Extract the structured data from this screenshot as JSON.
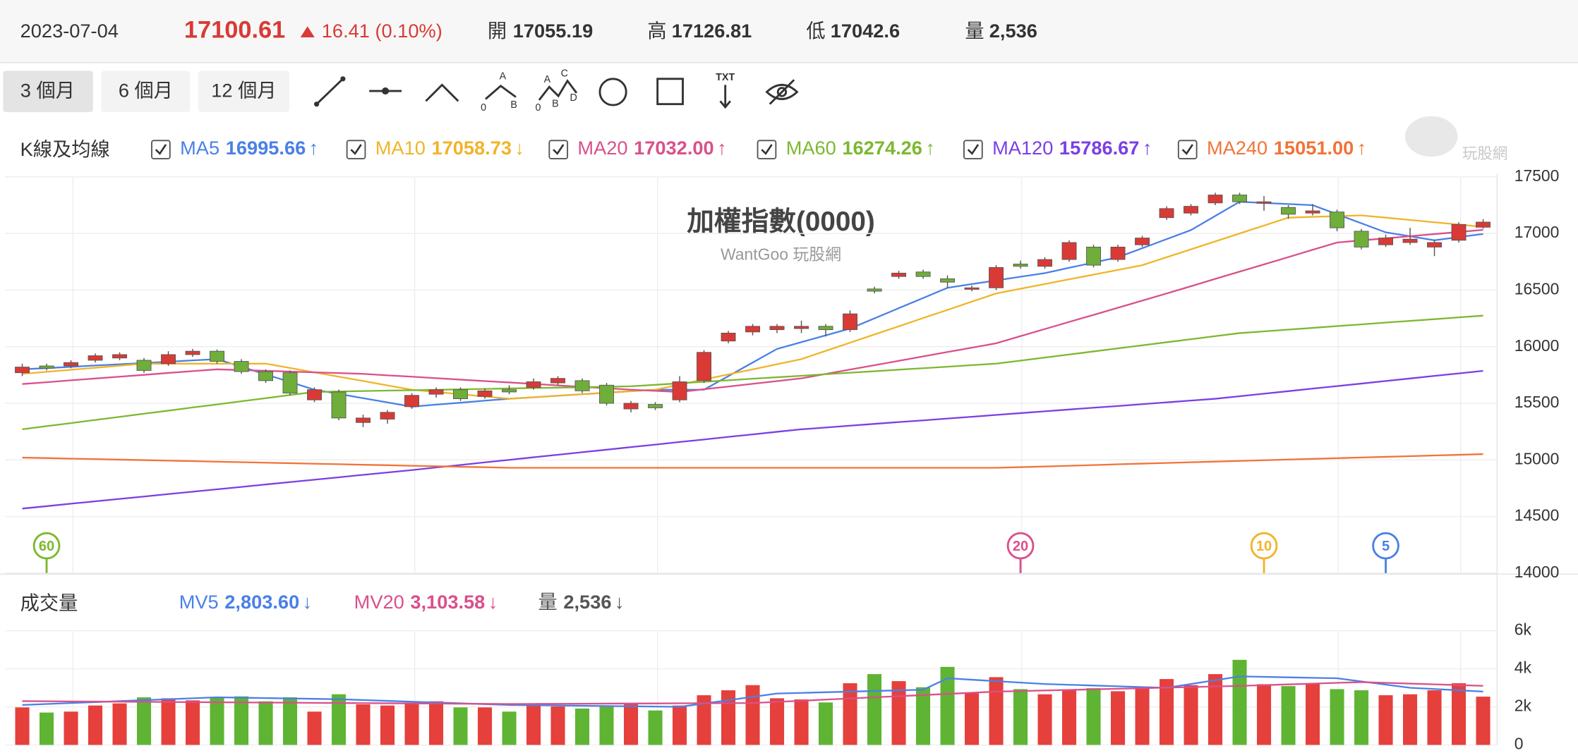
{
  "header": {
    "date": "2023-07-04",
    "price": "17100.61",
    "change": "16.41 (0.10%)",
    "open_label": "開",
    "open": "17055.19",
    "high_label": "高",
    "high": "17126.81",
    "low_label": "低",
    "low": "17042.6",
    "volume_label": "量",
    "volume": "2,536"
  },
  "toolbar": {
    "periods": [
      "3 個月",
      "6 個月",
      "12 個月"
    ],
    "abc_labels": [
      "A",
      "0",
      "B"
    ],
    "abcd_labels": [
      "A",
      "C",
      "0",
      "B",
      "D"
    ],
    "text_tool": "TXT"
  },
  "legend_title": "K線及均線",
  "watermark": "玩股網",
  "chart_data": [
    {
      "type": "candlestick",
      "title": "加權指數(0000)",
      "subtitle": "WantGoo 玩股網",
      "categories": [
        null,
        null,
        null,
        null,
        null,
        null,
        null,
        null,
        null,
        null,
        null,
        null,
        null,
        null,
        null,
        null,
        null,
        null,
        null,
        null,
        null,
        null,
        null,
        null,
        null,
        null,
        null,
        null,
        null,
        null,
        null,
        null,
        null,
        null,
        null,
        null,
        null,
        null,
        null,
        null,
        null,
        null,
        null,
        null,
        null,
        null,
        null,
        null,
        null,
        null,
        null,
        null,
        null,
        null,
        null,
        null,
        null,
        null,
        null,
        null,
        null
      ],
      "open": [
        15770,
        15830,
        15830,
        15880,
        15900,
        15880,
        15850,
        15930,
        15960,
        15870,
        15780,
        15770,
        15530,
        15600,
        15330,
        15360,
        15470,
        15580,
        15620,
        15560,
        15620,
        15640,
        15680,
        15700,
        15660,
        15450,
        15490,
        15530,
        15700,
        16050,
        16130,
        16150,
        16160,
        16180,
        16150,
        16510,
        16620,
        16660,
        16600,
        16510,
        16520,
        16730,
        16710,
        16770,
        16880,
        16770,
        16900,
        17140,
        17180,
        17270,
        17340,
        17270,
        17230,
        17180,
        17190,
        17020,
        16900,
        16920,
        16880,
        16940,
        17055.19
      ],
      "high": [
        15850,
        15850,
        15880,
        15940,
        15950,
        15900,
        15960,
        15980,
        15975,
        15890,
        15800,
        15790,
        15640,
        15620,
        15400,
        15440,
        15590,
        15640,
        15640,
        15630,
        15660,
        15720,
        15740,
        15720,
        15680,
        15520,
        15510,
        15740,
        15970,
        16140,
        16200,
        16200,
        16230,
        16200,
        16320,
        16530,
        16670,
        16680,
        16630,
        16540,
        16720,
        16760,
        16790,
        16940,
        16900,
        16900,
        16980,
        17240,
        17260,
        17360,
        17360,
        17330,
        17250,
        17260,
        17210,
        17040,
        16990,
        17050,
        16940,
        17100,
        17126.81
      ],
      "low": [
        15740,
        15790,
        15810,
        15860,
        15880,
        15770,
        15830,
        15910,
        15850,
        15760,
        15680,
        15570,
        15510,
        15350,
        15290,
        15320,
        15450,
        15550,
        15520,
        15540,
        15580,
        15620,
        15660,
        15590,
        15480,
        15420,
        15440,
        15510,
        15680,
        16030,
        16100,
        16120,
        16120,
        16090,
        16130,
        16470,
        16600,
        16600,
        16520,
        16490,
        16500,
        16690,
        16690,
        16750,
        16700,
        16750,
        16880,
        17120,
        17160,
        17250,
        17260,
        17200,
        17130,
        17160,
        17020,
        16860,
        16880,
        16900,
        16800,
        16920,
        17042.6
      ],
      "close": [
        15820,
        15810,
        15860,
        15920,
        15930,
        15790,
        15930,
        15960,
        15870,
        15780,
        15700,
        15590,
        15620,
        15370,
        15370,
        15420,
        15570,
        15620,
        15540,
        15610,
        15600,
        15690,
        15720,
        15610,
        15500,
        15500,
        15460,
        15690,
        15950,
        16120,
        16180,
        16180,
        16180,
        16150,
        16290,
        16490,
        16650,
        16620,
        16570,
        16520,
        16700,
        16710,
        16770,
        16920,
        16720,
        16880,
        16960,
        17220,
        17240,
        17340,
        17280,
        17280,
        17170,
        17200,
        17050,
        16880,
        16960,
        16950,
        16920,
        17080,
        17100.61
      ],
      "up_color": "#d93a36",
      "down_color": "#6fae3a",
      "series": [
        {
          "name": "MA5",
          "color": "#4a80e6",
          "period": 5,
          "value_label": "16995.66",
          "trend": "↑",
          "values": [
            15800,
            15811,
            15822,
            15834,
            15845,
            15856,
            15867,
            15879,
            15890,
            15823,
            15755,
            15688,
            15620,
            15583,
            15545,
            15508,
            15470,
            15488,
            15505,
            15523,
            15540,
            15553,
            15567,
            15580,
            15593,
            15607,
            15620,
            15620,
            15620,
            15740,
            15860,
            15980,
            16040,
            16100,
            16160,
            16250,
            16340,
            16430,
            16520,
            16553,
            16585,
            16618,
            16650,
            16697,
            16743,
            16790,
            16870,
            16950,
            17030,
            17155,
            17280,
            17270,
            17260,
            17250,
            17170,
            17090,
            17010,
            16975,
            16940,
            16968,
            16995.66
          ]
        },
        {
          "name": "MA10",
          "color": "#f0b429",
          "period": 10,
          "value_label": "17058.73",
          "trend": "↓",
          "values": [
            15760,
            15778,
            15796,
            15814,
            15832,
            15850,
            15850,
            15850,
            15850,
            15850,
            15850,
            15812,
            15773,
            15735,
            15697,
            15658,
            15620,
            15600,
            15580,
            15560,
            15540,
            15553,
            15567,
            15580,
            15593,
            15607,
            15620,
            15665,
            15710,
            15755,
            15800,
            15845,
            15890,
            15963,
            16035,
            16108,
            16180,
            16253,
            16325,
            16398,
            16470,
            16512,
            16553,
            16595,
            16637,
            16678,
            16720,
            16790,
            16860,
            16930,
            17000,
            17070,
            17140,
            17147,
            17153,
            17160,
            17140,
            17119,
            17099,
            17079,
            17058.73
          ]
        },
        {
          "name": "MA20",
          "color": "#d9508a",
          "period": 20,
          "value_label": "17032.00",
          "trend": "↑",
          "values": [
            15670,
            15686,
            15703,
            15719,
            15735,
            15751,
            15768,
            15784,
            15800,
            15793,
            15787,
            15780,
            15773,
            15767,
            15760,
            15747,
            15735,
            15722,
            15709,
            15696,
            15684,
            15671,
            15658,
            15645,
            15633,
            15620,
            15610,
            15600,
            15624,
            15648,
            15672,
            15696,
            15720,
            15759,
            15798,
            15836,
            15875,
            15914,
            15953,
            15991,
            16030,
            16093,
            16156,
            16219,
            16281,
            16344,
            16407,
            16470,
            16534,
            16599,
            16663,
            16727,
            16791,
            16856,
            16920,
            16939,
            16957,
            16976,
            16995,
            17013,
            17032
          ]
        },
        {
          "name": "MA60",
          "color": "#7cb82f",
          "period": 60,
          "value_label": "16274.26",
          "trend": "↑",
          "values": [
            15270,
            15298,
            15325,
            15353,
            15380,
            15408,
            15435,
            15463,
            15490,
            15518,
            15545,
            15573,
            15600,
            15604,
            15608,
            15612,
            15615,
            15619,
            15623,
            15627,
            15631,
            15635,
            15638,
            15642,
            15646,
            15650,
            15663,
            15677,
            15690,
            15703,
            15717,
            15730,
            15743,
            15757,
            15770,
            15783,
            15797,
            15810,
            15823,
            15837,
            15850,
            15877,
            15904,
            15931,
            15958,
            15985,
            16012,
            16039,
            16066,
            16093,
            16120,
            16135,
            16151,
            16166,
            16182,
            16197,
            16213,
            16228,
            16243,
            16259,
            16274.26
          ]
        },
        {
          "name": "MA120",
          "color": "#7b3fe4",
          "period": 120,
          "value_label": "15786.67",
          "trend": "↑",
          "values": [
            14570,
            14591,
            14613,
            14634,
            14655,
            14676,
            14698,
            14719,
            14740,
            14761,
            14783,
            14804,
            14825,
            14846,
            14868,
            14889,
            14910,
            14933,
            14955,
            14978,
            15000,
            15023,
            15045,
            15068,
            15090,
            15113,
            15135,
            15158,
            15180,
            15203,
            15225,
            15248,
            15270,
            15286,
            15302,
            15318,
            15334,
            15349,
            15365,
            15381,
            15397,
            15413,
            15429,
            15445,
            15461,
            15476,
            15492,
            15508,
            15524,
            15540,
            15562,
            15585,
            15607,
            15630,
            15652,
            15674,
            15697,
            15719,
            15742,
            15764,
            15786.67
          ]
        },
        {
          "name": "MA240",
          "color": "#f07438",
          "period": 240,
          "value_label": "15051.00",
          "trend": "↑",
          "values": [
            15020,
            15016,
            15011,
            15007,
            15002,
            14998,
            14993,
            14989,
            14984,
            14980,
            14975,
            14971,
            14966,
            14962,
            14957,
            14953,
            14948,
            14944,
            14939,
            14935,
            14930,
            14930,
            14930,
            14930,
            14930,
            14930,
            14930,
            14930,
            14930,
            14930,
            14930,
            14930,
            14930,
            14930,
            14930,
            14930,
            14930,
            14930,
            14930,
            14930,
            14930,
            14936,
            14942,
            14948,
            14954,
            14961,
            14967,
            14973,
            14979,
            14985,
            14991,
            14997,
            15003,
            15009,
            15015,
            15021,
            15027,
            15033,
            15039,
            15045,
            15051
          ]
        }
      ],
      "ylim": [
        14000,
        17500
      ],
      "yticks": [
        14000,
        14500,
        15000,
        15500,
        16000,
        16500,
        17000,
        17500
      ],
      "grid": true
    },
    {
      "type": "bar",
      "title": "成交量",
      "bar_name": "量",
      "bar_value_label": "2,536",
      "bar_trend": "↓",
      "values": [
        1970,
        1700,
        1750,
        2070,
        2180,
        2500,
        2450,
        2340,
        2500,
        2550,
        2290,
        2500,
        1750,
        2660,
        2130,
        2070,
        2230,
        2290,
        1970,
        1970,
        1750,
        2070,
        2020,
        1910,
        2020,
        2130,
        1810,
        2070,
        2610,
        2870,
        3140,
        2450,
        2390,
        2230,
        3240,
        3720,
        3350,
        3030,
        4100,
        2710,
        3560,
        2930,
        2660,
        2870,
        2980,
        2820,
        3030,
        3460,
        3140,
        3720,
        4470,
        3190,
        3090,
        3190,
        2930,
        2870,
        2610,
        2660,
        2870,
        3240,
        2536
      ],
      "up_color": "#e5403c",
      "down_color": "#5fb433",
      "series": [
        {
          "name": "MV5",
          "color": "#4a80e6",
          "value_label": "2,803.60",
          "trend": "↓",
          "values": [
            2100,
            2150,
            2200,
            2250,
            2300,
            2350,
            2400,
            2450,
            2500,
            2480,
            2460,
            2440,
            2420,
            2400,
            2357,
            2314,
            2271,
            2229,
            2186,
            2143,
            2100,
            2086,
            2071,
            2057,
            2043,
            2029,
            2014,
            2000,
            2175,
            2350,
            2525,
            2700,
            2733,
            2767,
            2800,
            2833,
            2867,
            2900,
            3500,
            3425,
            3350,
            3275,
            3200,
            3160,
            3120,
            3080,
            3040,
            3000,
            3200,
            3400,
            3600,
            3575,
            3550,
            3525,
            3500,
            3333,
            3167,
            3000,
            2935,
            2869,
            2803.6
          ]
        },
        {
          "name": "MV20",
          "color": "#d9508a",
          "value_label": "3,103.58",
          "trend": "↓",
          "values": [
            2300,
            2293,
            2285,
            2278,
            2270,
            2263,
            2255,
            2248,
            2240,
            2233,
            2225,
            2218,
            2210,
            2203,
            2195,
            2188,
            2180,
            2173,
            2165,
            2158,
            2150,
            2155,
            2160,
            2165,
            2170,
            2175,
            2180,
            2185,
            2190,
            2195,
            2200,
            2260,
            2320,
            2380,
            2440,
            2500,
            2560,
            2620,
            2680,
            2740,
            2800,
            2830,
            2860,
            2890,
            2920,
            2950,
            2980,
            3010,
            3040,
            3070,
            3100,
            3140,
            3180,
            3220,
            3260,
            3300,
            3261,
            3221,
            3182,
            3143,
            3103.58
          ]
        }
      ],
      "ylim": [
        0,
        6000
      ],
      "yticks": [
        0,
        {
          "value": 2000,
          "label": "2k"
        },
        {
          "value": 4000,
          "label": "4k"
        },
        {
          "value": 6000,
          "label": "6k"
        }
      ],
      "grid": true
    }
  ]
}
